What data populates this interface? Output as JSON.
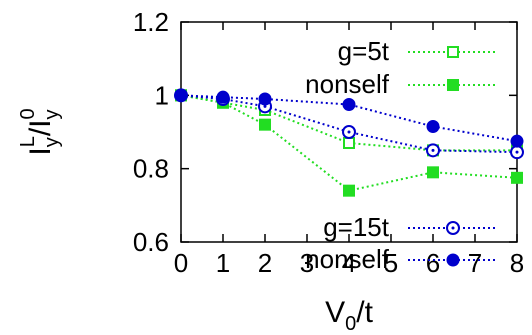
{
  "chart_data": {
    "type": "line",
    "xlabel": {
      "main": "V",
      "sub": "0",
      "rest": "/t"
    },
    "ylabel": {
      "base": "I",
      "base_sub": "y",
      "base_sup": "L",
      "denom": "I",
      "denom_sub": "y",
      "denom_sup": "0",
      "slash": "/"
    },
    "xlim": [
      0,
      8
    ],
    "ylim": [
      0.6,
      1.2
    ],
    "x_ticks": [
      "0",
      "1",
      "2",
      "3",
      "4",
      "5",
      "6",
      "7",
      "8"
    ],
    "y_ticks": [
      "0.6",
      "0.8",
      "1",
      "1.2"
    ],
    "grid": false,
    "series": [
      {
        "name": "g=5t",
        "color": "#22dd22",
        "marker": "open-square",
        "x": [
          0,
          1,
          2,
          4,
          6,
          8
        ],
        "y": [
          1.0,
          0.98,
          0.96,
          0.87,
          0.85,
          0.85
        ]
      },
      {
        "name": "nonself",
        "color": "#22dd22",
        "marker": "filled-square",
        "x": [
          0,
          1,
          2,
          4,
          6,
          8
        ],
        "y": [
          1.0,
          0.98,
          0.92,
          0.74,
          0.79,
          0.775
        ]
      },
      {
        "name": "g=15t",
        "color": "#0000cc",
        "marker": "open-circle",
        "x": [
          0,
          1,
          2,
          4,
          6,
          8
        ],
        "y": [
          1.0,
          0.99,
          0.97,
          0.9,
          0.85,
          0.845
        ]
      },
      {
        "name": "nonself",
        "color": "#0000cc",
        "marker": "filled-circle",
        "x": [
          0,
          1,
          2,
          4,
          6,
          8
        ],
        "y": [
          1.0,
          0.995,
          0.99,
          0.975,
          0.915,
          0.875
        ]
      }
    ]
  }
}
